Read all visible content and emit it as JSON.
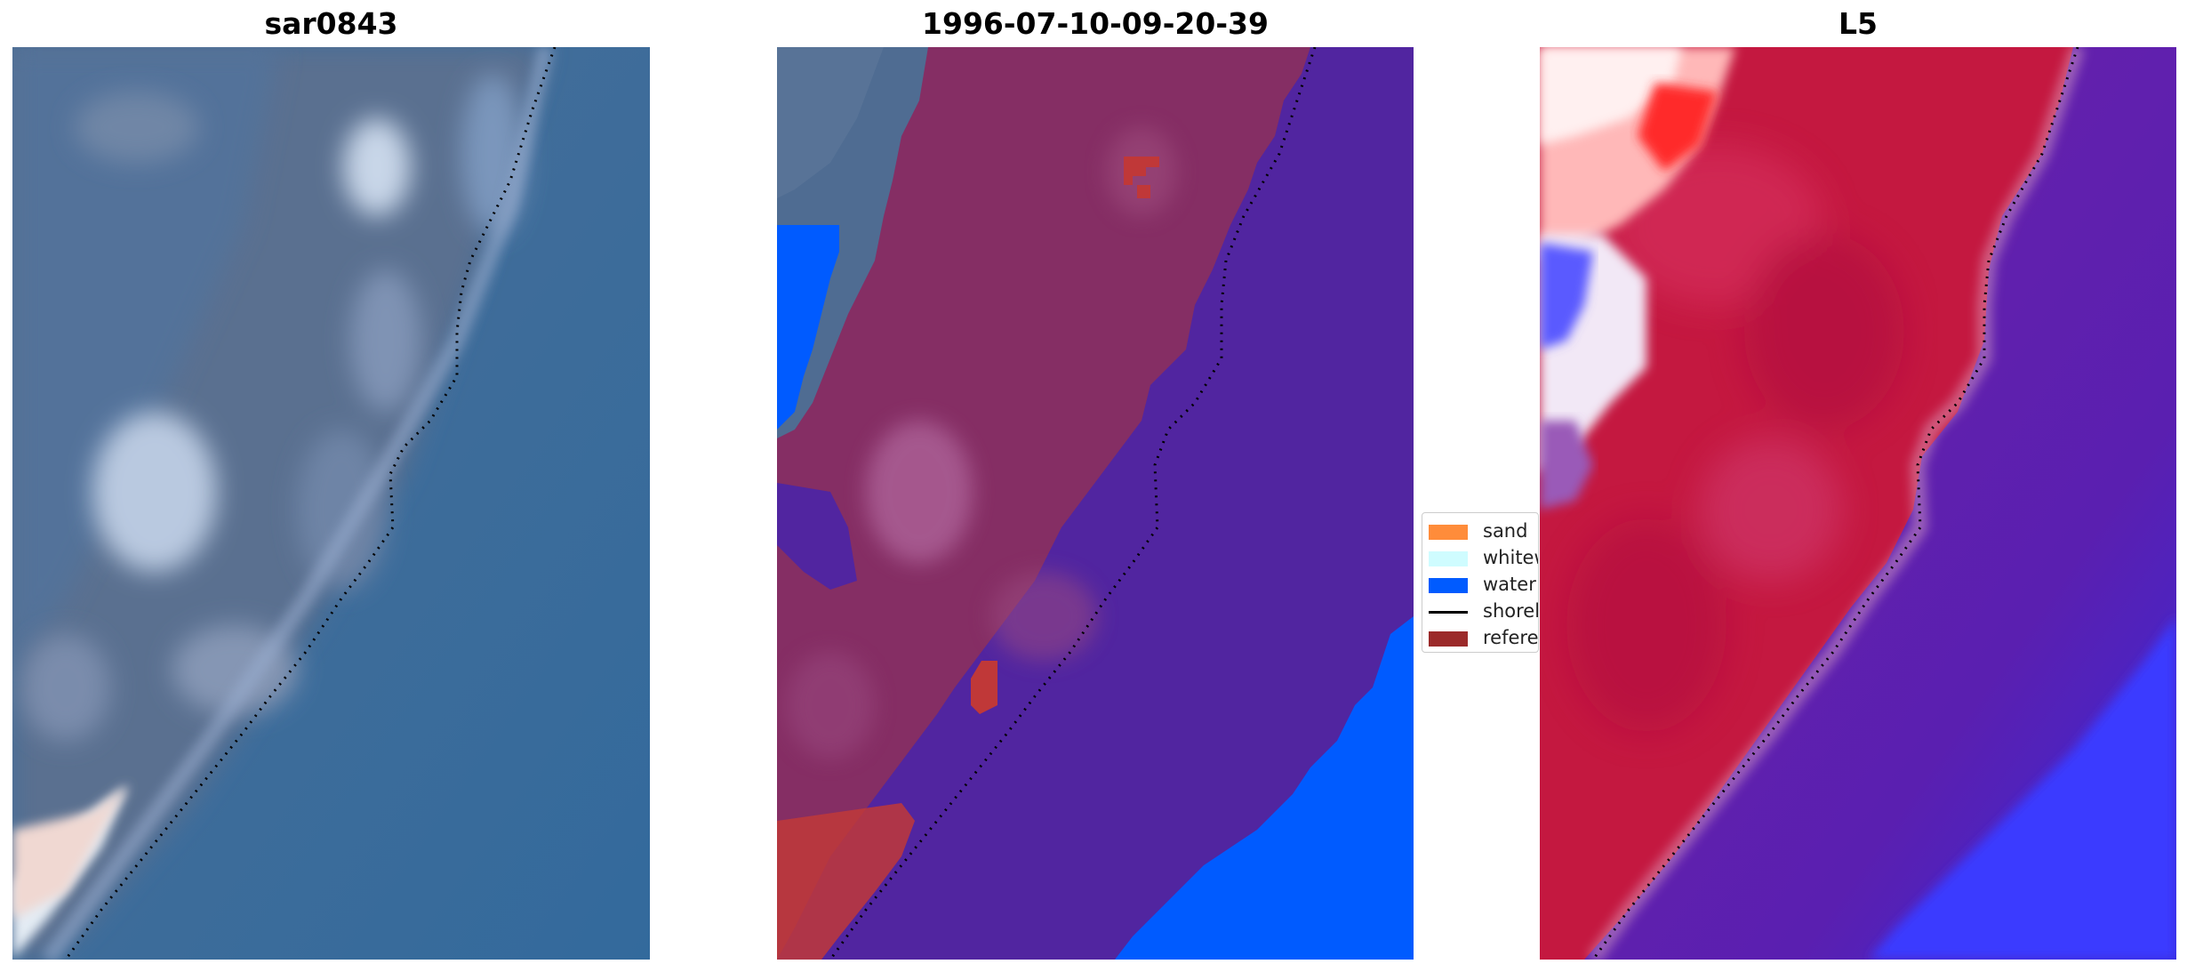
{
  "panels": [
    {
      "title": "sar0843",
      "image": "satellite RGB image"
    },
    {
      "title": "1996-07-10-09-20-39",
      "image": "classified image"
    },
    {
      "title": "L5",
      "image": "MNDWI image"
    }
  ],
  "legend": {
    "items": [
      {
        "label": "sand",
        "color": "#ff8c3a",
        "kind": "patch"
      },
      {
        "label": "whitewater",
        "color": "#cffcff",
        "kind": "patch"
      },
      {
        "label": "water",
        "color": "#005bff",
        "kind": "patch"
      },
      {
        "label": "shoreline",
        "color": "#000000",
        "kind": "line"
      },
      {
        "label": "reference",
        "color": "#9b2a2a",
        "kind": "patch"
      }
    ]
  },
  "colors": {
    "sea_blue": "#3c6a96",
    "land_overlay": "#8a3060",
    "water_class": "#5025a0",
    "index_red": "#c4143c",
    "index_purple": "#6a1aa8"
  }
}
